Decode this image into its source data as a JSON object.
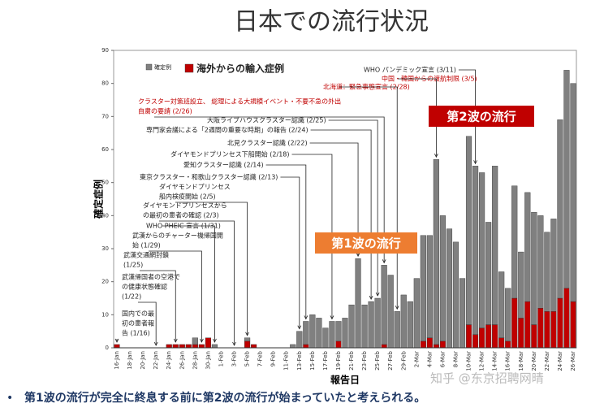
{
  "chart_data": {
    "type": "bar",
    "title": "日本での流行状況",
    "ylabel": "確定症例",
    "xlabel": "報告日",
    "ylim": [
      0,
      90
    ],
    "yticks": [
      0,
      10,
      20,
      30,
      40,
      50,
      60,
      70,
      80,
      90
    ],
    "categories": [
      "16-Jan",
      null,
      "18-Jan",
      null,
      "20-Jan",
      null,
      "22-Jan",
      null,
      "24-Jan",
      null,
      "26-Jan",
      null,
      "28-Jan",
      null,
      "30-Jan",
      null,
      "1-Feb",
      null,
      "3-Feb",
      null,
      "5-Feb",
      null,
      "7-Feb",
      null,
      "9-Feb",
      null,
      "11-Feb",
      null,
      "13-Feb",
      null,
      "15-Feb",
      null,
      "17-Feb",
      null,
      "19-Feb",
      null,
      "21-Feb",
      null,
      "23-Feb",
      null,
      "25-Feb",
      null,
      "27-Feb",
      null,
      "29-Feb",
      null,
      "2-Mar",
      null,
      "4-Mar",
      null,
      "6-Mar",
      null,
      "8-Mar",
      null,
      "10-Mar",
      null,
      "12-Mar",
      null,
      "14-Mar",
      null,
      "16-Mar",
      null,
      "18-Mar",
      null,
      "20-Mar",
      null,
      "22-Mar",
      null,
      "24-Mar",
      null,
      "26-Mar"
    ],
    "series": [
      {
        "name": "海外からの輸入症例",
        "color": "#c00000",
        "values": [
          1,
          0,
          0,
          0,
          0,
          0,
          0,
          0,
          1,
          1,
          1,
          1,
          1,
          1,
          3,
          0,
          0,
          0,
          0,
          0,
          2,
          1,
          0,
          0,
          0,
          0,
          0,
          0,
          0,
          1,
          0,
          0,
          0,
          0,
          2,
          0,
          0,
          0,
          0,
          0,
          0,
          1,
          0,
          0,
          0,
          0,
          0,
          2,
          3,
          1,
          2,
          0,
          0,
          0,
          7,
          4,
          6,
          7,
          7,
          3,
          2,
          15,
          9,
          14,
          7,
          12,
          11,
          11,
          15,
          18,
          14
        ]
      },
      {
        "name": "確定例",
        "color": "#808080",
        "values": [
          0,
          0,
          0,
          0,
          0,
          0,
          0,
          0,
          0,
          0,
          0,
          0,
          2,
          0,
          0,
          1,
          0,
          0,
          0,
          0,
          1,
          0,
          0,
          0,
          0,
          0,
          0,
          1,
          5,
          7,
          10,
          9,
          6,
          8,
          6,
          9,
          13,
          27,
          13,
          14,
          15,
          24,
          22,
          11,
          16,
          14,
          21,
          32,
          31,
          56,
          38,
          36,
          32,
          21,
          57,
          51,
          47,
          31,
          48,
          20,
          16,
          34,
          20,
          33,
          34,
          28,
          24,
          28,
          54,
          66,
          66
        ]
      }
    ],
    "annotations": [
      {
        "lines": [
          "WHO パンデミック宣言 (3/11)"
        ],
        "color": "#222222"
      },
      {
        "lines": [
          "中国・韓国からの渡航制限 (3/5)"
        ],
        "color": "#c00000"
      },
      {
        "lines": [
          "北海道：緊急事態宣言 (2/28)"
        ],
        "color": "#c00000"
      },
      {
        "lines": [
          "クラスター対策班設立、 総理による大規模イベント・不要不急の外出",
          "自粛の要請 (2/26)"
        ],
        "color": "#c00000"
      },
      {
        "lines": [
          "大阪ライブハウスクラスター認識 (2/25)"
        ],
        "color": "#222222"
      },
      {
        "lines": [
          "専門家会議による「2週間の重要な時期」の報告 (2/24)"
        ],
        "color": "#222222"
      },
      {
        "lines": [
          "北見クラスター認識 (2/22)"
        ],
        "color": "#222222"
      },
      {
        "lines": [
          "ダイヤモンドプリンセス下船開始 (2/18)"
        ],
        "color": "#222222"
      },
      {
        "lines": [
          "愛知クラスター認識 (2/14)"
        ],
        "color": "#222222"
      },
      {
        "lines": [
          "東京クラスター・和歌山クラスター認識 (2/13)"
        ],
        "color": "#222222"
      },
      {
        "lines": [
          "ダイヤモンドプリンセス",
          "船内検疫開始 (2/5)"
        ],
        "color": "#222222"
      },
      {
        "lines": [
          "ダイヤモンドプリンセスから",
          "の最初の患者の確認 (2/3)"
        ],
        "color": "#222222"
      },
      {
        "lines": [
          "WHO PHEIC 宣言 (1/31)"
        ],
        "color": "#222222"
      },
      {
        "lines": [
          "武漢からのチャーター機帰国開",
          "始 (1/29)"
        ],
        "color": "#222222"
      },
      {
        "lines": [
          "武漢交通網封鎖",
          "(1/25)"
        ],
        "color": "#222222"
      },
      {
        "lines": [
          "武漢帰国者の空港で",
          "の健康状態確認",
          "(1/22)"
        ],
        "color": "#222222"
      },
      {
        "lines": [
          "国内での最",
          "初の患者報",
          "告 (1/16)"
        ],
        "color": "#222222"
      }
    ],
    "wave_labels": [
      {
        "text": "第2波の流行",
        "color": "#c00000"
      },
      {
        "text": "第1波の流行",
        "color": "#ed7d31"
      }
    ],
    "note": "第1波の流行が完全に終息する前に第2波の流行が始まっていたと考えられる。",
    "watermark": "知乎 @东京招聘网晴"
  }
}
